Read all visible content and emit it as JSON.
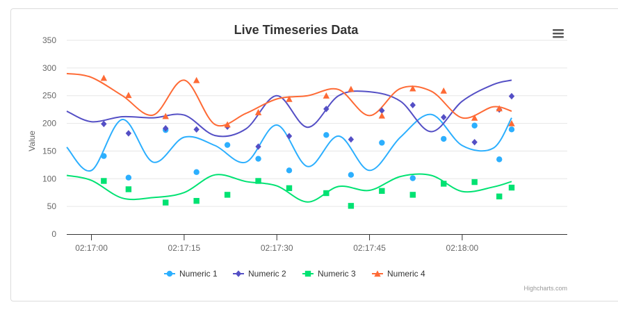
{
  "chart_data": {
    "type": "line",
    "title": "Live Timeseries Data",
    "ylabel": "Value",
    "xlabel": "",
    "ylim": [
      0,
      350
    ],
    "yticks": [
      0,
      50,
      100,
      150,
      200,
      250,
      300,
      350
    ],
    "xlim": [
      "02:16:56",
      "02:18:17"
    ],
    "xticks": [
      "02:17:00",
      "02:17:15",
      "02:17:30",
      "02:17:45",
      "02:18:00"
    ],
    "grid": true,
    "legend_position": "bottom",
    "credits": "Highcharts.com",
    "series": [
      {
        "name": "Numeric 1",
        "color": "#2caffe",
        "marker": "circle",
        "line_x": [
          "02:16:56",
          "02:17:00",
          "02:17:05",
          "02:17:10",
          "02:17:15",
          "02:17:20",
          "02:17:25",
          "02:17:30",
          "02:17:35",
          "02:17:40",
          "02:17:45",
          "02:17:50",
          "02:17:55",
          "02:18:00",
          "02:18:05",
          "02:18:08"
        ],
        "line_y": [
          157,
          115,
          207,
          130,
          175,
          160,
          130,
          197,
          122,
          177,
          115,
          175,
          216,
          160,
          155,
          210
        ],
        "points_x": [
          "02:17:02",
          "02:17:06",
          "02:17:12",
          "02:17:17",
          "02:17:22",
          "02:17:27",
          "02:17:32",
          "02:17:38",
          "02:17:42",
          "02:17:47",
          "02:17:52",
          "02:17:57",
          "02:18:02",
          "02:18:06",
          "02:18:08"
        ],
        "points_y": [
          141,
          102,
          188,
          112,
          161,
          136,
          115,
          179,
          107,
          165,
          101,
          172,
          196,
          135,
          189
        ]
      },
      {
        "name": "Numeric 2",
        "color": "#544fc5",
        "marker": "diamond",
        "line_x": [
          "02:16:56",
          "02:17:00",
          "02:17:05",
          "02:17:10",
          "02:17:15",
          "02:17:20",
          "02:17:25",
          "02:17:30",
          "02:17:35",
          "02:17:40",
          "02:17:45",
          "02:17:50",
          "02:17:55",
          "02:18:00",
          "02:18:05",
          "02:18:08"
        ],
        "line_y": [
          222,
          203,
          212,
          210,
          215,
          178,
          190,
          250,
          193,
          250,
          257,
          240,
          185,
          240,
          270,
          278
        ],
        "points_x": [
          "02:17:02",
          "02:17:06",
          "02:17:12",
          "02:17:17",
          "02:17:22",
          "02:17:27",
          "02:17:32",
          "02:17:38",
          "02:17:42",
          "02:17:47",
          "02:17:52",
          "02:17:57",
          "02:18:02",
          "02:18:06",
          "02:18:08"
        ],
        "points_y": [
          199,
          182,
          191,
          189,
          194,
          158,
          177,
          226,
          171,
          223,
          233,
          211,
          166,
          225,
          249
        ]
      },
      {
        "name": "Numeric 3",
        "color": "#00e272",
        "marker": "square",
        "line_x": [
          "02:16:56",
          "02:17:00",
          "02:17:05",
          "02:17:10",
          "02:17:15",
          "02:17:20",
          "02:17:25",
          "02:17:30",
          "02:17:35",
          "02:17:40",
          "02:17:45",
          "02:17:50",
          "02:17:55",
          "02:18:00",
          "02:18:05",
          "02:18:08"
        ],
        "line_y": [
          106,
          97,
          65,
          66,
          75,
          107,
          95,
          87,
          58,
          86,
          79,
          104,
          106,
          77,
          85,
          95
        ],
        "points_x": [
          "02:17:02",
          "02:17:06",
          "02:17:12",
          "02:17:17",
          "02:17:22",
          "02:17:27",
          "02:17:32",
          "02:17:38",
          "02:17:42",
          "02:17:47",
          "02:17:52",
          "02:17:57",
          "02:18:02",
          "02:18:06",
          "02:18:08"
        ],
        "points_y": [
          96,
          81,
          57,
          60,
          71,
          96,
          83,
          74,
          51,
          78,
          71,
          91,
          94,
          68,
          84
        ]
      },
      {
        "name": "Numeric 4",
        "color": "#fe6a35",
        "marker": "triangle",
        "line_x": [
          "02:16:56",
          "02:17:00",
          "02:17:05",
          "02:17:10",
          "02:17:15",
          "02:17:20",
          "02:17:25",
          "02:17:30",
          "02:17:35",
          "02:17:40",
          "02:17:45",
          "02:17:50",
          "02:17:55",
          "02:18:00",
          "02:18:05",
          "02:18:08"
        ],
        "line_y": [
          290,
          283,
          250,
          215,
          278,
          198,
          218,
          244,
          250,
          261,
          214,
          263,
          258,
          210,
          230,
          222
        ],
        "points_x": [
          "02:17:02",
          "02:17:06",
          "02:17:12",
          "02:17:17",
          "02:17:22",
          "02:17:27",
          "02:17:32",
          "02:17:38",
          "02:17:42",
          "02:17:47",
          "02:17:52",
          "02:17:57",
          "02:18:02",
          "02:18:06",
          "02:18:08"
        ],
        "points_y": [
          282,
          251,
          213,
          278,
          198,
          220,
          244,
          250,
          262,
          214,
          263,
          259,
          210,
          227,
          200
        ]
      }
    ]
  },
  "menu": {
    "icon": "hamburger-menu-icon"
  }
}
